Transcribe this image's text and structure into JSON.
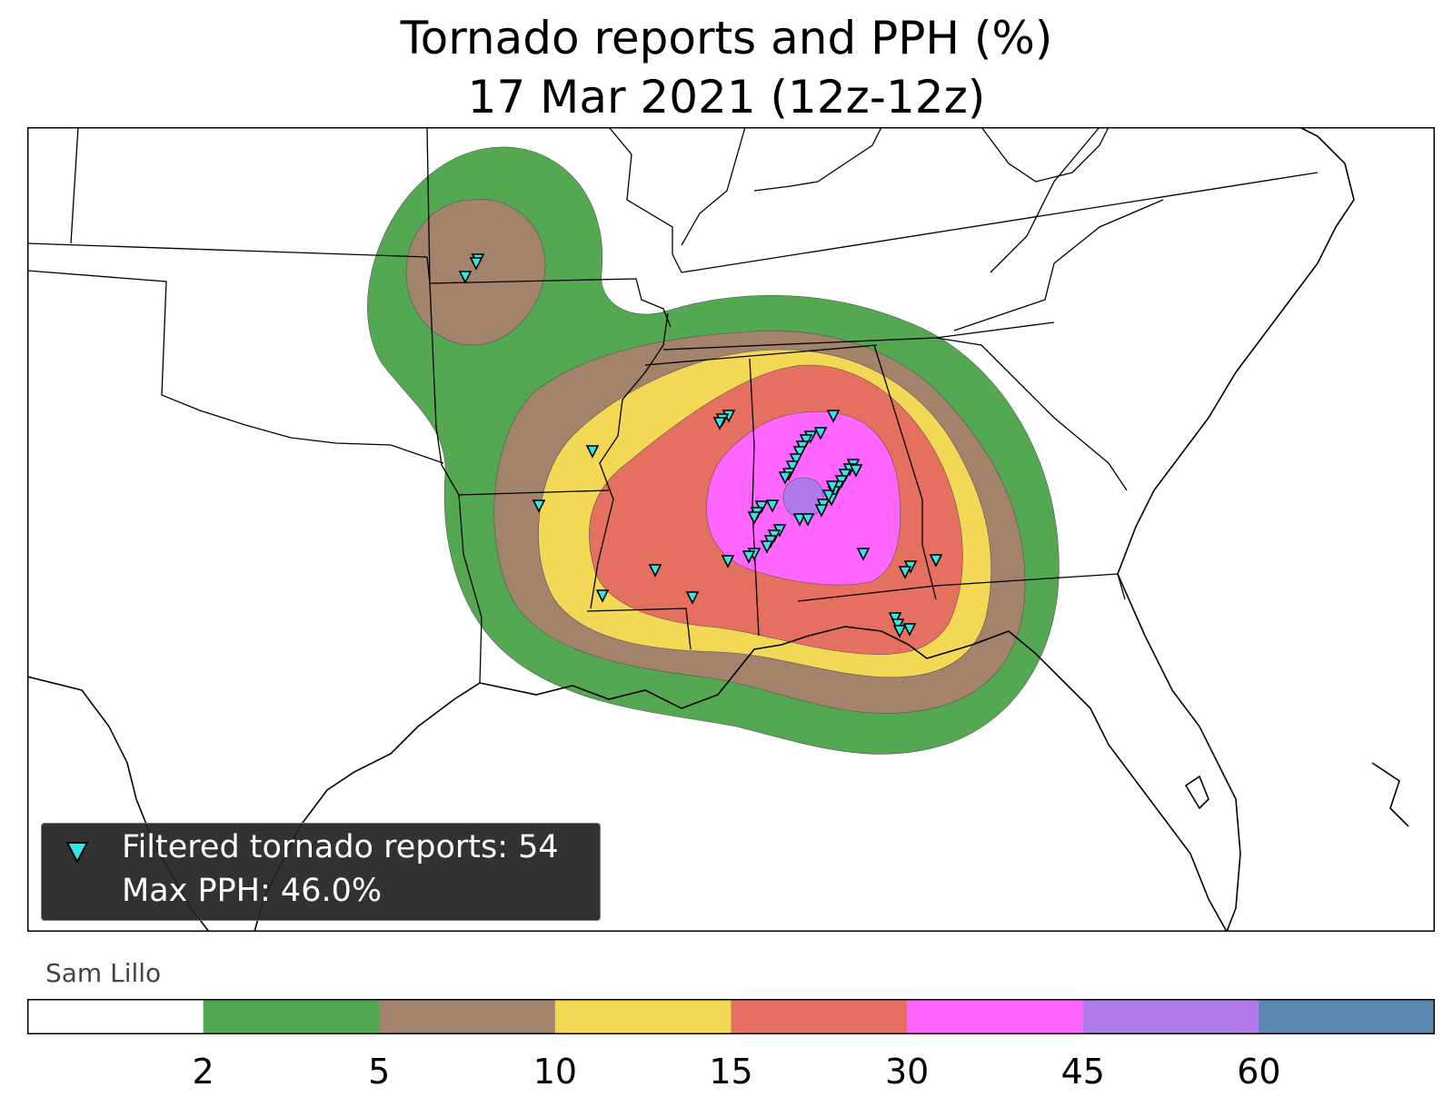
{
  "title": {
    "line1": "Tornado reports and PPH (%)",
    "line2": "17 Mar 2021 (12z-12z)"
  },
  "legend": {
    "reports_label": "Filtered tornado reports: 54",
    "max_label": "Max PPH: 46.0%"
  },
  "credit": "Sam Lillo",
  "colorbar": {
    "bins": [
      {
        "min": 0,
        "max": 2,
        "color": "#ffffff"
      },
      {
        "min": 2,
        "max": 5,
        "color": "#54a852"
      },
      {
        "min": 5,
        "max": 10,
        "color": "#a4836d"
      },
      {
        "min": 10,
        "max": 15,
        "color": "#f2d854"
      },
      {
        "min": 15,
        "max": 30,
        "color": "#e6705f"
      },
      {
        "min": 30,
        "max": 45,
        "color": "#ff66ff"
      },
      {
        "min": 45,
        "max": 60,
        "color": "#b07aea"
      },
      {
        "min": 60,
        "max": null,
        "color": "#5b87b3"
      }
    ],
    "tick_labels": [
      "2",
      "5",
      "10",
      "15",
      "30",
      "45",
      "60"
    ]
  },
  "map": {
    "region": "Southeastern United States",
    "marker_color": "#33e6e6",
    "marker_shape": "downward-triangle",
    "report_count": 54,
    "max_pph_percent": 46.0
  }
}
